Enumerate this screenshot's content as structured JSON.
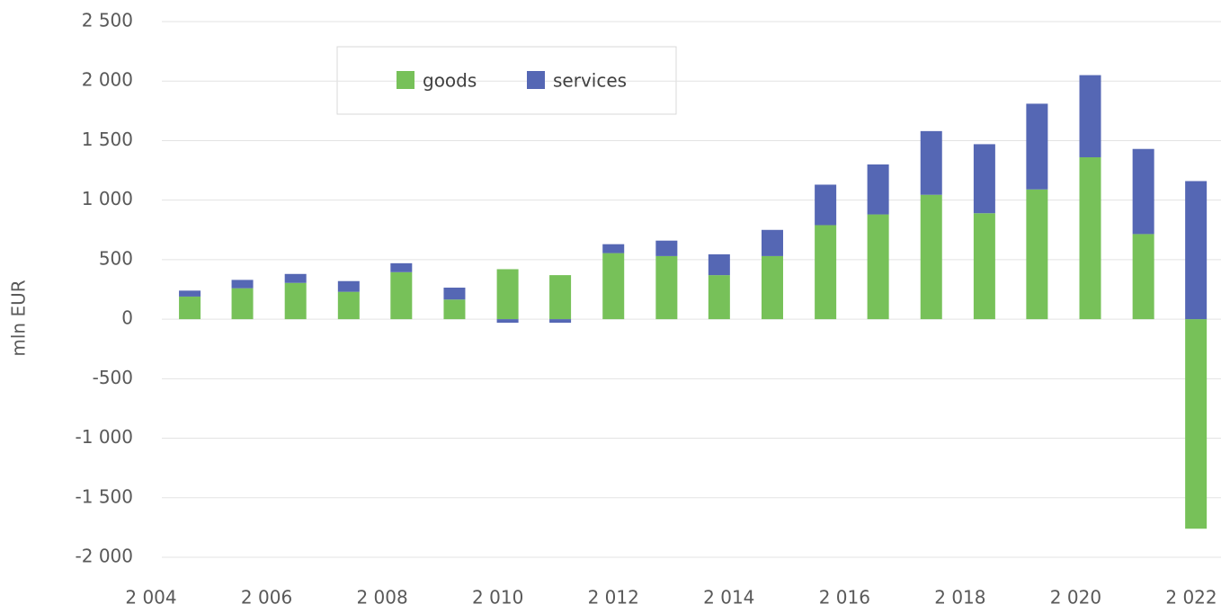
{
  "chart_data": {
    "type": "bar",
    "stacked": true,
    "y_label": "mln EUR",
    "x": [
      2004.67,
      2005.58,
      2006.5,
      2007.42,
      2008.33,
      2009.25,
      2010.17,
      2011.08,
      2012.0,
      2012.92,
      2013.83,
      2014.75,
      2015.67,
      2016.58,
      2017.5,
      2018.42,
      2019.33,
      2020.25,
      2021.17,
      2022.08
    ],
    "series": [
      {
        "name": "goods",
        "color": "#77c159",
        "values": [
          190,
          260,
          305,
          230,
          395,
          165,
          420,
          370,
          555,
          530,
          370,
          530,
          790,
          880,
          1045,
          890,
          1090,
          1360,
          715,
          -1760
        ]
      },
      {
        "name": "services",
        "color": "#5567b4",
        "values": [
          50,
          70,
          75,
          90,
          75,
          100,
          -30,
          -30,
          75,
          130,
          175,
          220,
          340,
          420,
          535,
          580,
          720,
          690,
          715,
          1160
        ]
      }
    ],
    "ylim": [
      -2000,
      2500
    ],
    "yticks": [
      {
        "value": -2000,
        "label": "-2 000"
      },
      {
        "value": -1500,
        "label": "-1 500"
      },
      {
        "value": -1000,
        "label": "-1 000"
      },
      -500,
      0,
      500,
      {
        "value": 1000,
        "label": "1 000"
      },
      {
        "value": 1500,
        "label": "1 500"
      },
      {
        "value": 2000,
        "label": "2 000"
      },
      {
        "value": 2500,
        "label": "2 500"
      }
    ],
    "xlim": [
      2004,
      2022
    ],
    "xticks": [
      {
        "value": 2004,
        "label": "2 004"
      },
      {
        "value": 2006,
        "label": "2 006"
      },
      {
        "value": 2008,
        "label": "2 008"
      },
      {
        "value": 2010,
        "label": "2 010"
      },
      {
        "value": 2012,
        "label": "2 012"
      },
      {
        "value": 2014,
        "label": "2 014"
      },
      {
        "value": 2016,
        "label": "2 016"
      },
      {
        "value": 2018,
        "label": "2 018"
      },
      {
        "value": 2020,
        "label": "2 020"
      },
      {
        "value": 2022,
        "label": "2 022"
      }
    ],
    "grid": true,
    "legend": "top"
  }
}
